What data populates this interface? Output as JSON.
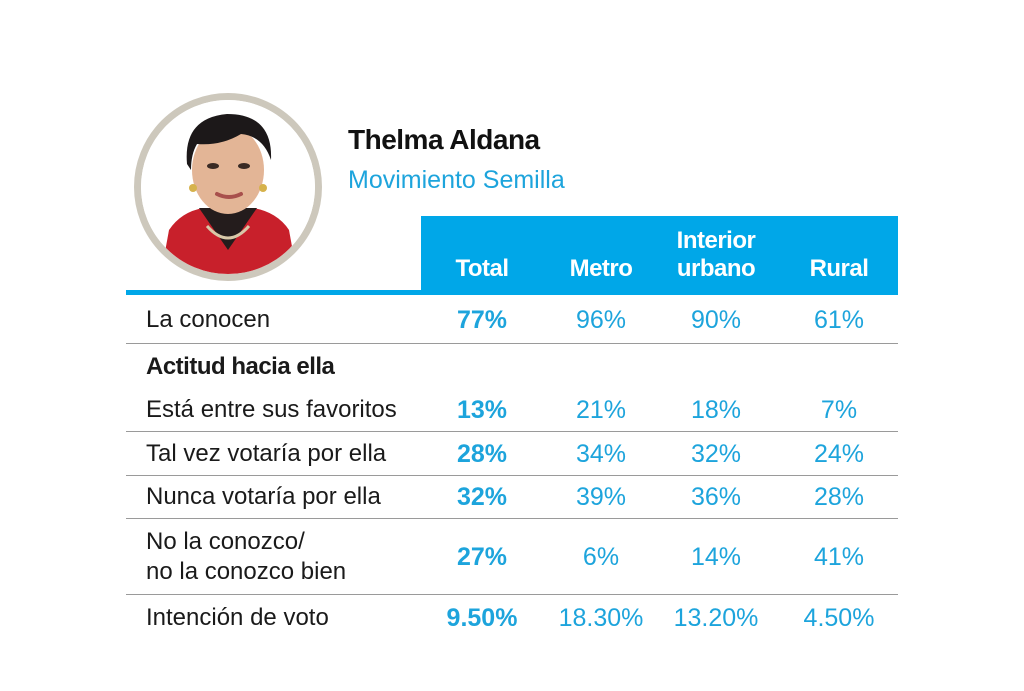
{
  "header": {
    "name": "Thelma Aldana",
    "party": "Movimiento Semilla"
  },
  "colors": {
    "accent": "#00a7e8",
    "value_text": "#1da4dc",
    "portrait_ring": "#cdc8bc"
  },
  "chart_data": {
    "type": "table",
    "columns": [
      "Total",
      "Metro",
      "Interior urbano",
      "Rural"
    ],
    "column_lines": [
      [
        "Total"
      ],
      [
        "Metro"
      ],
      [
        "Interior",
        "urbano"
      ],
      [
        "Rural"
      ]
    ],
    "rows": [
      {
        "label": "La conocen",
        "values": [
          "77%",
          "96%",
          "90%",
          "61%"
        ]
      },
      {
        "label": "Actitud hacia ella",
        "section": true,
        "values": []
      },
      {
        "label": "Está entre sus favoritos",
        "values": [
          "13%",
          "21%",
          "18%",
          "7%"
        ]
      },
      {
        "label": "Tal vez votaría por ella",
        "values": [
          "28%",
          "34%",
          "32%",
          "24%"
        ]
      },
      {
        "label": "Nunca votaría por ella",
        "values": [
          "32%",
          "39%",
          "36%",
          "28%"
        ]
      },
      {
        "label": "No la conozco/ no la conozco bien",
        "label_lines": [
          "No la conozco/",
          "no la conozco bien"
        ],
        "values": [
          "27%",
          "6%",
          "14%",
          "41%"
        ]
      },
      {
        "label": "Intención de voto",
        "values": [
          "9.50%",
          "18.30%",
          "13.20%",
          "4.50%"
        ]
      }
    ]
  }
}
